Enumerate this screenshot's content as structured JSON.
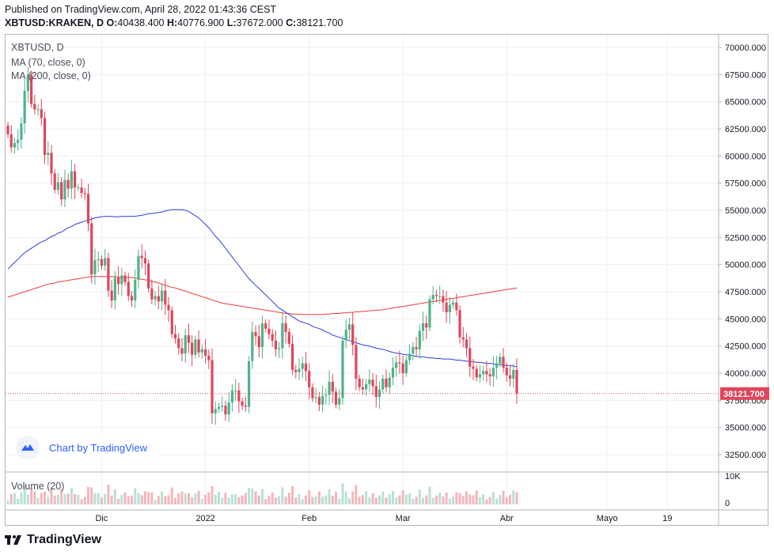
{
  "header": {
    "published": "Published on TradingView.com, April 28, 2022 01:43:36 CEST",
    "symbol": "XBTUSD:KRAKEN, D",
    "open_label": "O:",
    "open": "40438.400",
    "high_label": "H:",
    "high": "40776.900",
    "low_label": "L:",
    "low": "37672.000",
    "close_label": "C:",
    "close": "38121.700"
  },
  "legend": {
    "symbol": "XBTUSD, D",
    "ma70": "MA (70, close, 0)",
    "ma200": "MA (200, close, 0)",
    "volume": "Volume (20)"
  },
  "branding": {
    "chart_by": "Chart by TradingView",
    "footer_logo": "TradingView",
    "chart_by_icon": "tradingview-cloud-icon",
    "footer_icon": "tradingview-logo-icon"
  },
  "chart_data": {
    "type": "candlestick",
    "x_start": "2021-11-03",
    "x_ticks": [
      {
        "date": "2021-12-01",
        "label": "Dic"
      },
      {
        "date": "2022-01-01",
        "label": "2022"
      },
      {
        "date": "2022-02-01",
        "label": "Feb"
      },
      {
        "date": "2022-03-01",
        "label": "Mar"
      },
      {
        "date": "2022-04-01",
        "label": "Abr"
      },
      {
        "date": "2022-05-01",
        "label": "Mayo"
      },
      {
        "date": "2022-05-19",
        "label": "19"
      }
    ],
    "y_ticks": [
      "32500.000",
      "35000.000",
      "37500.000",
      "40000.000",
      "42500.000",
      "45000.000",
      "47500.000",
      "50000.000",
      "52500.000",
      "55000.000",
      "57500.000",
      "60000.000",
      "62500.000",
      "65000.000",
      "67500.000",
      "70000.000"
    ],
    "volume_axis_labels": [
      "10K",
      "0"
    ],
    "last_price_label": "38121.700",
    "last_price": 38121.7,
    "colors": {
      "up": "#26a69a",
      "down": "#ef5350",
      "up_candle": "#4fb38a",
      "down_candle": "#e0465a",
      "ma70": "#2a3fe0",
      "ma200": "#ef3b3b",
      "last_price": "#e0465a",
      "vol_up": "#b9e1d3",
      "vol_down": "#f4b6bd",
      "grid": "#eef0f3"
    },
    "closes": [
      62000,
      60800,
      61200,
      61500,
      63000,
      66000,
      67500,
      64800,
      64300,
      64300,
      63500,
      60100,
      60300,
      58400,
      56900,
      57600,
      56000,
      57800,
      57000,
      58600,
      57100,
      57100,
      56600,
      56500,
      53800,
      49100,
      50400,
      50500,
      49900,
      50600,
      47600,
      46700,
      48800,
      48200,
      49000,
      48400,
      47100,
      46700,
      48600,
      50800,
      50600,
      50100,
      47800,
      46800,
      47100,
      46600,
      47600,
      46300,
      45800,
      43600,
      43200,
      42300,
      41800,
      43500,
      42800,
      41700,
      43100,
      41900,
      42200,
      41600,
      41200,
      36300,
      36700,
      36900,
      37000,
      36200,
      37300,
      38400,
      38400,
      37400,
      37000,
      36900,
      41100,
      43800,
      43400,
      42400,
      44600,
      44100,
      43600,
      43000,
      42200,
      42300,
      44600,
      43800,
      42700,
      40300,
      40100,
      40400,
      40900,
      40200,
      38700,
      37700,
      37800,
      37100,
      37900,
      38000,
      39200,
      38300,
      37100,
      37700,
      43000,
      44000,
      44500,
      42600,
      39500,
      38700,
      38500,
      39000,
      39400,
      38800,
      37800,
      38500,
      39500,
      38700,
      39600,
      40500,
      41000,
      40900,
      40000,
      41200,
      41800,
      42400,
      42200,
      43900,
      44600,
      44200,
      46800,
      47200,
      47100,
      47100,
      46500,
      45600,
      46300,
      46500,
      45800,
      43300,
      43100,
      42300,
      40600,
      40400,
      39600,
      39900,
      40200,
      39900,
      39700,
      40500,
      40900,
      41500,
      40500,
      39800,
      39500,
      40300,
      38121.7
    ],
    "ma70": [
      49600,
      49900,
      50200,
      50500,
      50800,
      51100,
      51300,
      51500,
      51700,
      51900,
      52100,
      52200,
      52400,
      52600,
      52700,
      52900,
      53000,
      53200,
      53400,
      53500,
      53700,
      53800,
      53900,
      54000,
      54100,
      54200,
      54300,
      54350,
      54400,
      54450,
      54450,
      54450,
      54400,
      54400,
      54450,
      54450,
      54450,
      54450,
      54450,
      54500,
      54550,
      54600,
      54700,
      54700,
      54750,
      54800,
      54850,
      54950,
      55000,
      55050,
      55050,
      55050,
      55050,
      55000,
      54900,
      54700,
      54500,
      54300,
      54000,
      53700,
      53400,
      53000,
      52600,
      52300,
      51900,
      51500,
      51100,
      50700,
      50300,
      49900,
      49500,
      49100,
      48700,
      48400,
      48100,
      47800,
      47500,
      47200,
      46900,
      46600,
      46300,
      46000,
      45800,
      45600,
      45400,
      45200,
      45000,
      44800,
      44700,
      44600,
      44500,
      44300,
      44200,
      44100,
      44000,
      43800,
      43700,
      43500,
      43400,
      43300,
      43200,
      43100,
      43000,
      42900,
      42800,
      42700,
      42600,
      42550,
      42500,
      42400,
      42300,
      42250,
      42200,
      42100,
      42000,
      41900,
      41850,
      41800,
      41750,
      41700,
      41650,
      41600,
      41550,
      41500,
      41500,
      41450,
      41400,
      41400,
      41350,
      41350,
      41300,
      41300,
      41300,
      41250,
      41200,
      41200,
      41150,
      41100,
      41100,
      41050,
      41000,
      41000,
      40950,
      40900,
      40900,
      40850,
      40800,
      40800,
      40750,
      40700,
      40700,
      40650,
      40600
    ],
    "ma200": [
      47000,
      47100,
      47200,
      47300,
      47400,
      47500,
      47600,
      47700,
      47800,
      47900,
      48000,
      48100,
      48200,
      48250,
      48300,
      48400,
      48450,
      48500,
      48550,
      48600,
      48650,
      48700,
      48750,
      48800,
      48850,
      48900,
      48900,
      48900,
      48900,
      48900,
      48900,
      48900,
      48900,
      48850,
      48800,
      48800,
      48800,
      48800,
      48750,
      48700,
      48650,
      48600,
      48550,
      48450,
      48400,
      48300,
      48200,
      48100,
      48000,
      47900,
      47850,
      47750,
      47650,
      47550,
      47450,
      47350,
      47250,
      47150,
      47050,
      46950,
      46850,
      46750,
      46650,
      46550,
      46450,
      46400,
      46350,
      46300,
      46250,
      46200,
      46150,
      46100,
      46050,
      46000,
      45950,
      45900,
      45850,
      45800,
      45750,
      45700,
      45650,
      45600,
      45550,
      45500,
      45500,
      45450,
      45450,
      45400,
      45400,
      45400,
      45400,
      45400,
      45400,
      45400,
      45400,
      45450,
      45450,
      45500,
      45500,
      45500,
      45550,
      45550,
      45600,
      45600,
      45650,
      45650,
      45700,
      45700,
      45750,
      45750,
      45800,
      45800,
      45850,
      45900,
      45950,
      46000,
      46050,
      46100,
      46150,
      46200,
      46250,
      46300,
      46350,
      46400,
      46450,
      46500,
      46550,
      46600,
      46650,
      46700,
      46750,
      46800,
      46850,
      46900,
      46950,
      47000,
      47050,
      47100,
      47150,
      47200,
      47250,
      47300,
      47350,
      47400,
      47450,
      47500,
      47550,
      47600,
      47650,
      47700,
      47750,
      47800,
      47850
    ]
  }
}
